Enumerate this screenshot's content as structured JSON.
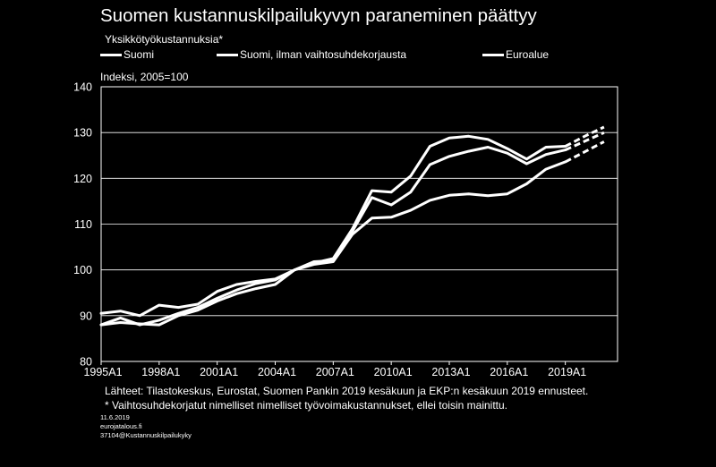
{
  "chart_data": {
    "type": "line",
    "title": "Suomen kustannuskilpailukyvyn paraneminen päättyy",
    "subtitle": "Yksikkötyökustannuksia*",
    "ylabel": "Indeksi, 2005=100",
    "xlabel": "",
    "ylim": [
      80,
      140
    ],
    "yticks": [
      "80",
      "90",
      "100",
      "110",
      "120",
      "130",
      "140"
    ],
    "xlim": [
      1995,
      2021.7
    ],
    "xtick_labels": [
      "1995A1",
      "1998A1",
      "2001A1",
      "2004A1",
      "2007A1",
      "2010A1",
      "2013A1",
      "2016A1",
      "2019A1"
    ],
    "xtick_years": [
      1995,
      1998,
      2001,
      2004,
      2007,
      2010,
      2013,
      2016,
      2019
    ],
    "grid": true,
    "forecast_from": 2019,
    "x": [
      1995,
      1996,
      1997,
      1998,
      1999,
      2000,
      2001,
      2002,
      2003,
      2004,
      2005,
      2006,
      2007,
      2008,
      2009,
      2010,
      2011,
      2012,
      2013,
      2014,
      2015,
      2016,
      2017,
      2018,
      2019,
      2020,
      2021
    ],
    "series": [
      {
        "name": "Suomi",
        "values": [
          90.5,
          91.0,
          90.0,
          92.3,
          91.8,
          92.5,
          95.3,
          96.8,
          97.5,
          98.0,
          100.0,
          101.5,
          102.5,
          109.0,
          117.3,
          117.0,
          120.5,
          127.0,
          128.8,
          129.2,
          128.5,
          126.5,
          124.2,
          126.8,
          127.0,
          129.2,
          131.2
        ]
      },
      {
        "name": "Suomi, ilman vaihtosuhdekorjausta",
        "values": [
          88.0,
          89.5,
          88.0,
          89.0,
          90.5,
          91.8,
          93.8,
          95.6,
          97.0,
          97.8,
          100.0,
          101.8,
          102.0,
          108.5,
          115.8,
          114.2,
          117.0,
          123.0,
          124.8,
          125.9,
          126.8,
          125.5,
          123.2,
          125.2,
          126.2,
          128.1,
          130.0
        ]
      },
      {
        "name": "Euroalue",
        "values": [
          88.0,
          88.5,
          88.2,
          88.0,
          90.0,
          91.2,
          93.2,
          94.8,
          95.9,
          96.8,
          100.0,
          101.2,
          101.8,
          107.8,
          111.3,
          111.5,
          113.0,
          115.2,
          116.3,
          116.6,
          116.2,
          116.6,
          118.8,
          122.0,
          123.6,
          125.8,
          128.0
        ]
      }
    ],
    "footnotes": [
      "Lähteet: Tilastokeskus, Eurostat, Suomen Pankin 2019 kesäkuun ja EKP:n kesäkuun 2019 ennusteet.",
      "* Vaihtosuhdekorjatut nimelliset nimelliset työvoimakustannukset, ellei toisin mainittu."
    ],
    "meta_lines": [
      "11.6.2019",
      "eurojatalous.fi",
      "37104@Kustannuskilpailukyky"
    ]
  }
}
